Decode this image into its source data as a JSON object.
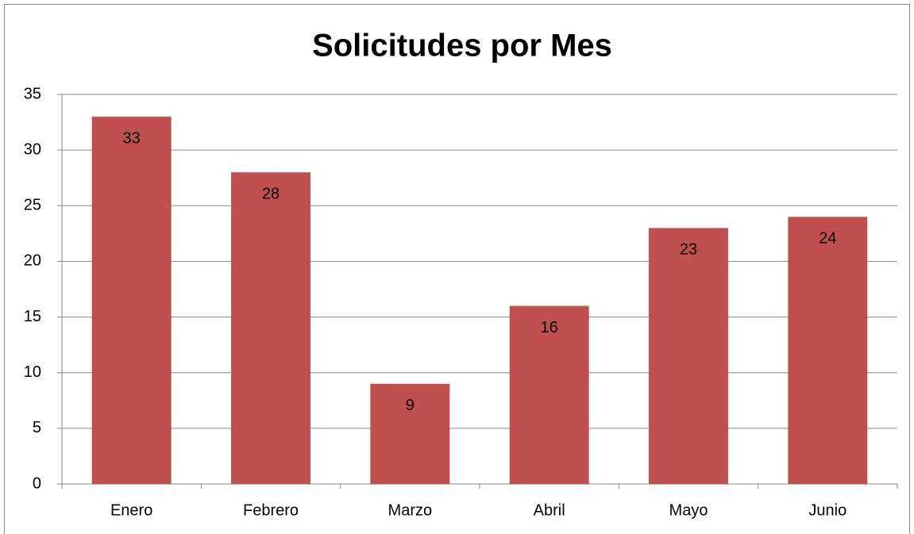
{
  "chart_data": {
    "type": "bar",
    "title": "Solicitudes por Mes",
    "categories": [
      "Enero",
      "Febrero",
      "Marzo",
      "Abril",
      "Mayo",
      "Junio"
    ],
    "values": [
      33,
      28,
      9,
      16,
      23,
      24
    ],
    "color": "#c0504d",
    "ylim": [
      0,
      35
    ],
    "yticks": [
      0,
      5,
      10,
      15,
      20,
      25,
      30,
      35
    ],
    "grid": true
  }
}
